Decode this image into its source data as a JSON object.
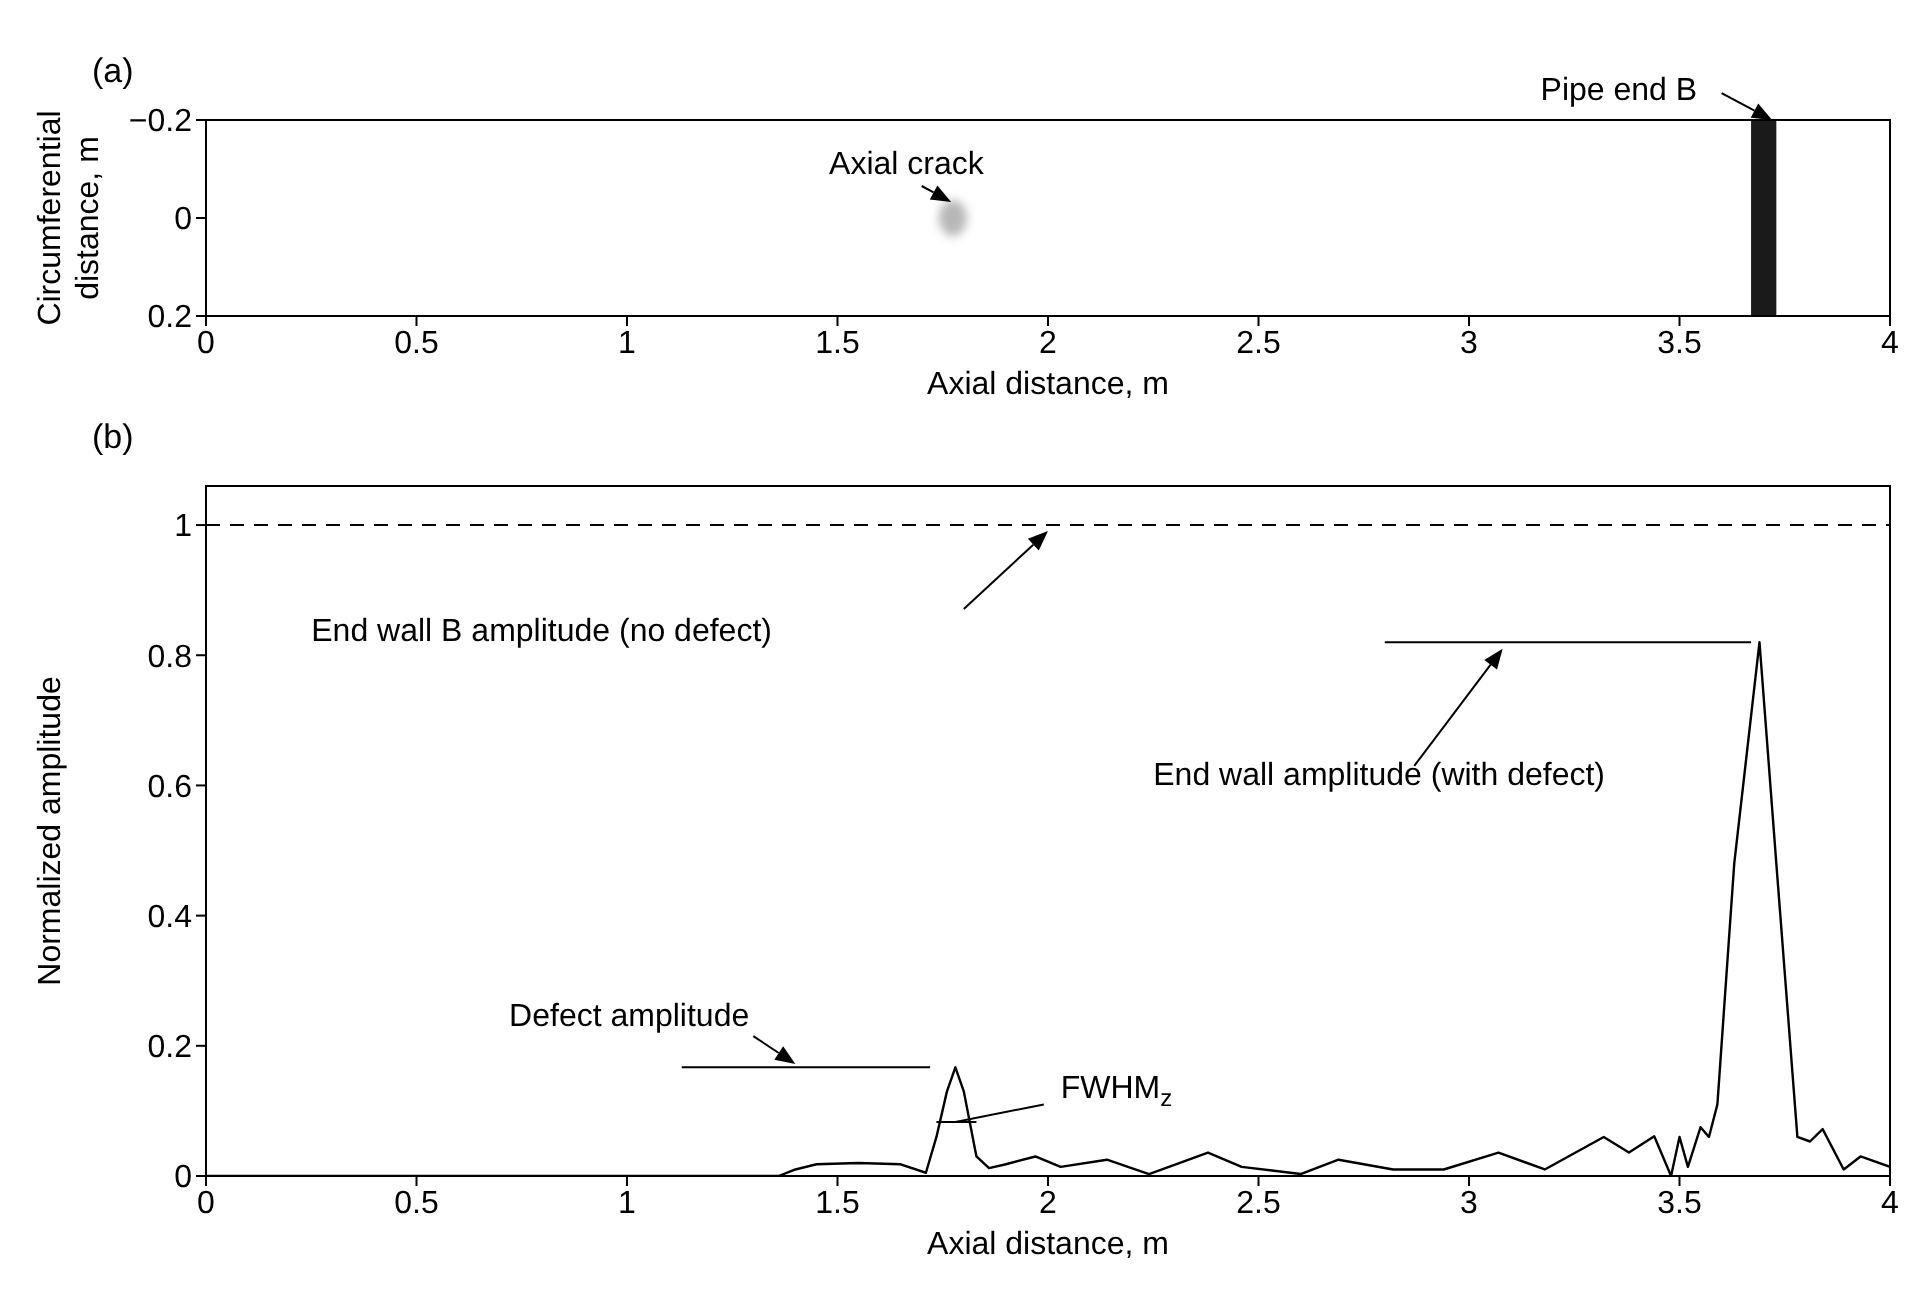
{
  "chart_data": [
    {
      "type": "scatter",
      "color": "#000000",
      "title": "(a)",
      "bands": [
        {
          "axis": "x",
          "from": 3.67,
          "to": 3.73,
          "color": "#1a1a1a"
        }
      ],
      "xlabel": "Axial distance, m",
      "ylabel": "Circumferential distance, m",
      "xlim": [
        0,
        4
      ],
      "xticks": [
        0,
        0.5,
        1,
        1.5,
        2,
        2.5,
        3,
        3.5,
        4
      ],
      "ylim": [
        0.2,
        -0.2
      ],
      "yticks": [
        {
          "value": -0.2,
          "label": "−0.2"
        },
        0,
        0.2
      ],
      "annotations": [
        {
          "text": "Axial crack",
          "x": 1.78,
          "y": 0
        },
        "Pipe end B"
      ]
    },
    {
      "type": "line",
      "title": "(b)",
      "xlabel": "Axial distance, m",
      "ylabel": "Normalized amplitude",
      "xlim": [
        0,
        4
      ],
      "xticks": [
        0,
        0.5,
        1,
        1.5,
        2,
        2.5,
        3,
        3.5,
        4
      ],
      "ylim": [
        0,
        1.06
      ],
      "yticks": [
        0,
        0.2,
        0.4,
        0.6,
        0.8,
        1
      ],
      "color": "#000000",
      "x": [
        0,
        1.36,
        1.4,
        1.45,
        1.55,
        1.65,
        1.71,
        1.735,
        1.76,
        1.78,
        1.8,
        1.83,
        1.86,
        1.9,
        1.97,
        2.03,
        2.14,
        2.24,
        2.38,
        2.46,
        2.6,
        2.69,
        2.82,
        2.94,
        3.07,
        3.18,
        3.32,
        3.38,
        3.44,
        3.48,
        3.5,
        3.52,
        3.55,
        3.57,
        3.59,
        3.63,
        3.69,
        3.73,
        3.78,
        3.81,
        3.84,
        3.89,
        3.93,
        4.0
      ],
      "values": [
        0,
        0,
        0.01,
        0.018,
        0.02,
        0.018,
        0.005,
        0.06,
        0.13,
        0.167,
        0.13,
        0.03,
        0.012,
        0.018,
        0.03,
        0.014,
        0.025,
        0.003,
        0.036,
        0.014,
        0.003,
        0.025,
        0.01,
        0.01,
        0.036,
        0.01,
        0.06,
        0.036,
        0.061,
        0,
        0.06,
        0.014,
        0.075,
        0.06,
        0.11,
        0.48,
        0.82,
        0.48,
        0.06,
        0.053,
        0.072,
        0.01,
        0.03,
        0.014
      ],
      "ref_lines": [
        {
          "axis": "y",
          "value": 1,
          "label": "End wall B amplitude (no defect)",
          "color": "#000000",
          "line_style": "dashed"
        }
      ],
      "annotations": [
        "End wall amplitude (with defect)",
        "Defect amplitude",
        "FWHM$_{z}$"
      ]
    }
  ]
}
